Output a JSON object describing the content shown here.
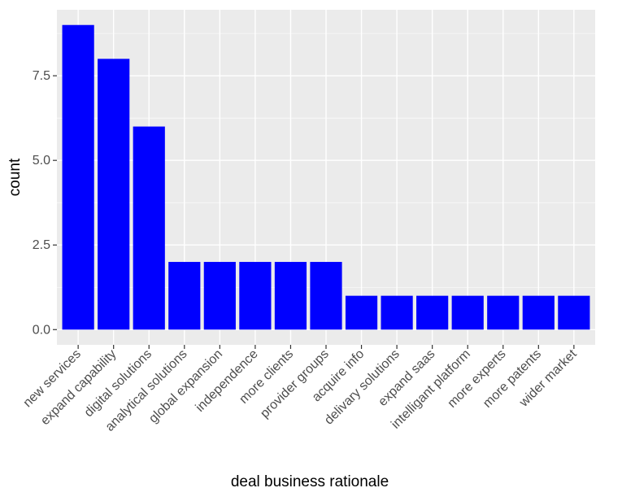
{
  "chart_data": {
    "type": "bar",
    "xlabel": "deal business rationale",
    "ylabel": "count",
    "categories": [
      "new services",
      "expand capability",
      "digital solutions",
      "analytical solutions",
      "global expansion",
      "independence",
      "more clients",
      "provider groups",
      "acquire info",
      "delivary solutions",
      "expand saas",
      "intelligant platform",
      "more experts",
      "more patents",
      "wider market"
    ],
    "values": [
      9,
      8,
      6,
      2,
      2,
      2,
      2,
      2,
      1,
      1,
      1,
      1,
      1,
      1,
      1
    ],
    "ylim": [
      -0.45,
      9.45
    ],
    "yticks": [
      0.0,
      2.5,
      5.0,
      7.5
    ],
    "ytick_labels": [
      "0.0",
      "2.5",
      "5.0",
      "7.5"
    ],
    "grid": true,
    "colors": {
      "bar": "#0000ff",
      "panel": "#ebebeb",
      "grid_major": "#ffffff",
      "tick": "#4d4d4d"
    }
  }
}
